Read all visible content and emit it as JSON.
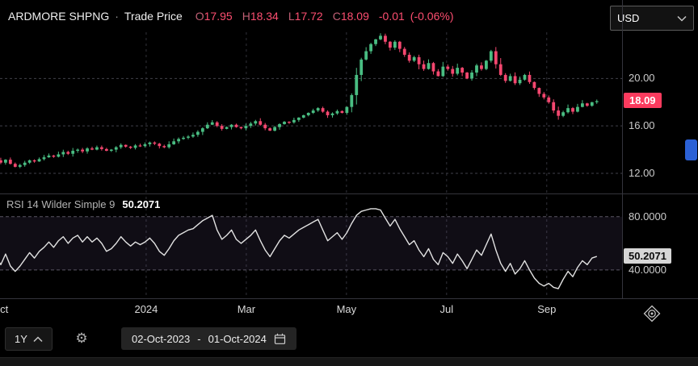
{
  "header": {
    "title": "ARDMORE SHPNG",
    "separator": "·",
    "subtitle": "Trade Price",
    "ohlc": [
      {
        "label": "O",
        "value": "17.95"
      },
      {
        "label": "H",
        "value": "18.34"
      },
      {
        "label": "L",
        "value": "17.72"
      },
      {
        "label": "C",
        "value": "18.09"
      }
    ],
    "change": "-0.01",
    "change_pct": "(-0.06%)",
    "currency": "USD"
  },
  "rsi_panel": {
    "label": "RSI 14 Wilder Simple 9",
    "value": "50.2071"
  },
  "toolbar": {
    "range_label": "1Y",
    "gear_glyph": "⚙",
    "date_from": "02-Oct-2023",
    "date_separator": "-",
    "date_to": "01-Oct-2024"
  },
  "chart_data": {
    "type": "candlestick",
    "title": "ARDMORE SHPNG Trade Price, 02-Oct-2023 to 01-Oct-2024",
    "price_ylim": [
      10.3,
      23.9
    ],
    "rsi_ylim": [
      20,
      95
    ],
    "price_axis_labels": [
      {
        "text": "20.00",
        "value": 20.0
      },
      {
        "text": "16.00",
        "value": 16.0
      },
      {
        "text": "12.00",
        "value": 12.0
      }
    ],
    "last_price": {
      "text": "18.09",
      "value": 18.09
    },
    "rsi_axis_labels": [
      {
        "text": "80.0000",
        "value": 80.0
      },
      {
        "text": "40.0000",
        "value": 40.0
      }
    ],
    "rsi_current": {
      "text": "50.2071",
      "value": 50.2071
    },
    "x_ticks": [
      {
        "label": "Oct",
        "month_index": 0,
        "clipped": true
      },
      {
        "label": "2024",
        "month_index": 3
      },
      {
        "label": "Mar",
        "month_index": 5
      },
      {
        "label": "May",
        "month_index": 7
      },
      {
        "label": "Jul",
        "month_index": 9
      },
      {
        "label": "Sep",
        "month_index": 11
      }
    ],
    "close": [
      13.1,
      12.9,
      13.15,
      12.8,
      12.55,
      12.7,
      12.9,
      13.1,
      13.0,
      13.2,
      13.35,
      13.5,
      13.4,
      13.6,
      13.8,
      13.65,
      13.9,
      14.0,
      13.85,
      14.1,
      14.0,
      14.2,
      14.05,
      13.9,
      14.0,
      14.2,
      14.4,
      14.25,
      14.15,
      14.35,
      14.3,
      14.45,
      14.6,
      14.5,
      14.3,
      14.2,
      14.45,
      14.7,
      14.9,
      15.0,
      15.1,
      15.25,
      15.5,
      15.8,
      16.1,
      16.3,
      16.0,
      15.75,
      15.9,
      16.1,
      15.9,
      15.8,
      16.0,
      16.2,
      16.4,
      16.1,
      15.8,
      15.6,
      15.9,
      16.15,
      16.35,
      16.3,
      16.5,
      16.7,
      16.9,
      17.1,
      17.3,
      17.5,
      17.2,
      16.9,
      17.05,
      17.25,
      17.1,
      17.6,
      18.6,
      20.3,
      21.6,
      22.3,
      22.9,
      23.3,
      23.6,
      23.1,
      22.6,
      23.1,
      22.5,
      22.0,
      21.5,
      21.8,
      21.2,
      20.8,
      21.3,
      20.6,
      20.2,
      21.0,
      20.8,
      20.4,
      20.9,
      20.5,
      20.0,
      20.5,
      21.1,
      20.8,
      21.5,
      22.3,
      21.2,
      20.3,
      19.8,
      20.2,
      19.6,
      19.9,
      20.3,
      19.7,
      19.2,
      18.7,
      18.4,
      18.0,
      17.3,
      16.85,
      17.15,
      17.5,
      17.2,
      17.6,
      17.9,
      17.7,
      18.0,
      18.09
    ],
    "rsi": [
      50,
      44,
      52,
      43,
      39,
      43,
      48,
      53,
      49,
      54,
      57,
      61,
      57,
      62,
      65,
      60,
      64,
      66,
      61,
      65,
      61,
      64,
      60,
      54,
      56,
      60,
      65,
      61,
      58,
      61,
      59,
      61,
      64,
      60,
      54,
      51,
      56,
      62,
      66,
      68,
      70,
      71,
      74,
      77,
      79,
      81,
      70,
      63,
      66,
      70,
      63,
      60,
      63,
      66,
      70,
      62,
      55,
      50,
      56,
      62,
      66,
      64,
      67,
      70,
      72,
      74,
      76,
      78,
      70,
      62,
      65,
      68,
      63,
      68,
      75,
      81,
      84,
      85,
      86,
      86,
      85,
      79,
      73,
      78,
      71,
      65,
      59,
      62,
      55,
      50,
      56,
      48,
      44,
      53,
      50,
      45,
      52,
      47,
      41,
      48,
      55,
      51,
      59,
      67,
      55,
      45,
      39,
      45,
      37,
      41,
      47,
      40,
      34,
      30,
      28,
      30,
      27,
      26,
      33,
      39,
      35,
      42,
      47,
      44,
      49,
      50.2071
    ],
    "colors": {
      "up": "#49bd82",
      "down": "#f4476f",
      "last_price_badge": "#fb3b5e",
      "rsi_line": "#e2e2e2",
      "axis_handle_blue": "#2b61d6"
    }
  }
}
